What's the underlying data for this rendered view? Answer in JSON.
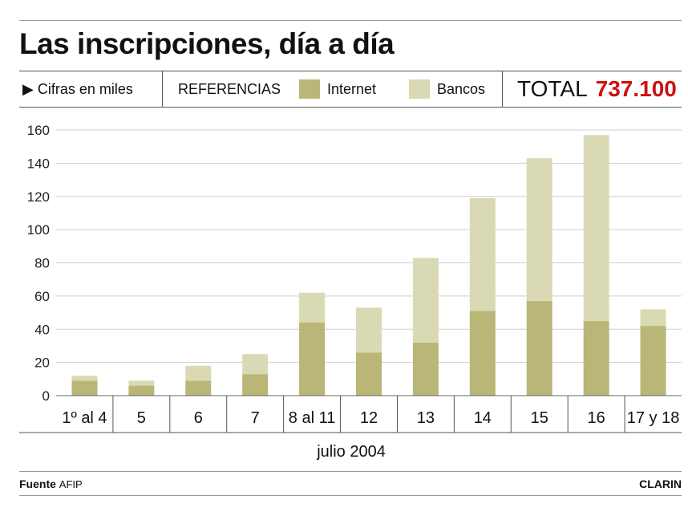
{
  "title": "Las inscripciones, día a día",
  "references": {
    "units": "▶ Cifras en miles",
    "heading": "REFERENCIAS",
    "internet_label": "Internet",
    "bancos_label": "Bancos",
    "total_label": "TOTAL",
    "total_value": "737.100"
  },
  "colors": {
    "internet": "#b9b677",
    "bancos": "#d9dab4",
    "total_value": "#cc1111",
    "grid": "#cfcfcf"
  },
  "month_label": "julio 2004",
  "footer": {
    "source_label": "Fuente",
    "source_value": "AFIP",
    "brand": "CLARIN"
  },
  "chart_data": {
    "type": "bar",
    "stacked": true,
    "categories": [
      "1º al 4",
      "5",
      "6",
      "7",
      "8 al 11",
      "12",
      "13",
      "14",
      "15",
      "16",
      "17 y 18"
    ],
    "series": [
      {
        "name": "Internet",
        "values": [
          9,
          6,
          9,
          13,
          44,
          26,
          32,
          51,
          57,
          45,
          42
        ]
      },
      {
        "name": "Bancos",
        "values": [
          3,
          3,
          9,
          12,
          18,
          27,
          51,
          68,
          86,
          112,
          10
        ]
      }
    ],
    "yticks": [
      0,
      20,
      40,
      60,
      80,
      100,
      120,
      140,
      160
    ],
    "ylim": [
      0,
      160
    ],
    "grid": true,
    "xlabel": "julio 2004",
    "ylabel": ""
  }
}
